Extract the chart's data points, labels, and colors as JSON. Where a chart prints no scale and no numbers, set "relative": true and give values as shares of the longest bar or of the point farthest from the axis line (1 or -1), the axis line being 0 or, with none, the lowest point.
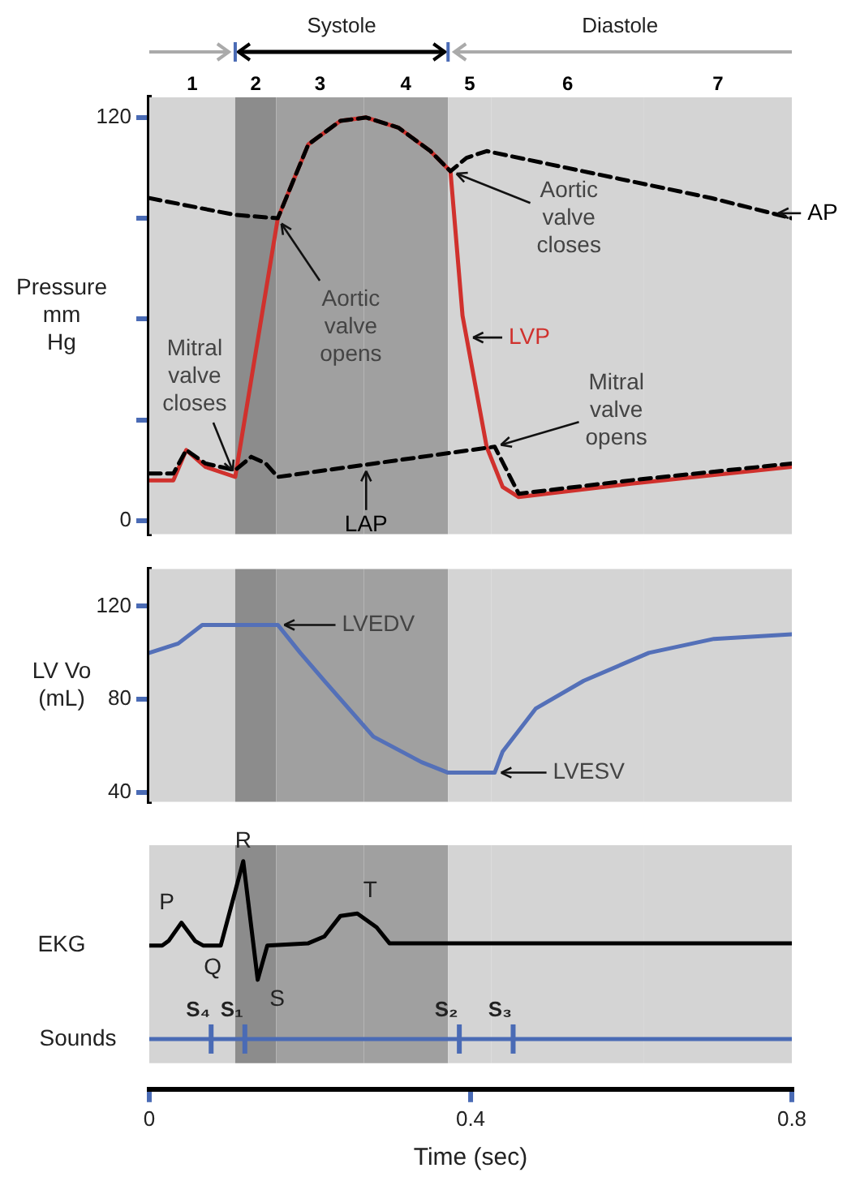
{
  "chart_data": [
    {
      "type": "line",
      "ylabel": "Pressure mm Hg",
      "xlim": [
        0,
        0.8
      ],
      "ylim": [
        -4,
        126
      ],
      "yticks": [
        0,
        {
          "value": 30,
          "label": null
        },
        {
          "value": 60,
          "label": null
        },
        {
          "value": 90,
          "label": null
        },
        120
      ],
      "tick_labels": "y",
      "series": [
        {
          "name": "AP",
          "color": "#000000",
          "line_style": "dashed",
          "x": [
            0,
            0.107,
            0.16,
            0.198,
            0.238,
            0.27,
            0.31,
            0.35,
            0.375,
            0.395,
            0.42,
            0.5,
            0.6,
            0.7,
            0.8
          ],
          "values": [
            96,
            91,
            90,
            112,
            119,
            120,
            117,
            110,
            104,
            108,
            110,
            106,
            101,
            96,
            90
          ]
        },
        {
          "name": "LAP",
          "color": "#000000",
          "line_style": "dashed",
          "x": [
            0,
            0.03,
            0.046,
            0.07,
            0.107,
            0.127,
            0.145,
            0.16,
            0.43,
            0.46,
            0.6,
            0.8
          ],
          "values": [
            14,
            14,
            21,
            17,
            15,
            19,
            17,
            13,
            22,
            8,
            12,
            17
          ]
        },
        {
          "name": "LVP",
          "color": "#d0312d",
          "x": [
            0,
            0.03,
            0.046,
            0.07,
            0.107,
            0.16,
            0.198,
            0.238,
            0.27,
            0.31,
            0.35,
            0.375,
            0.39,
            0.42,
            0.44,
            0.46,
            0.6,
            0.8
          ],
          "values": [
            12,
            12,
            21,
            16,
            13,
            90,
            112,
            119,
            120,
            117,
            110,
            104,
            61,
            22,
            10,
            7,
            11,
            16
          ]
        }
      ],
      "bands": [
        {
          "axis": "x",
          "from": 0,
          "to": 0.107,
          "label": "1",
          "color": "#d4d4d4"
        },
        {
          "axis": "x",
          "from": 0.107,
          "to": 0.158,
          "label": "2",
          "color": "#8c8c8c"
        },
        {
          "axis": "x",
          "from": 0.158,
          "to": 0.267,
          "label": "3",
          "color": "#a0a0a0"
        },
        {
          "axis": "x",
          "from": 0.267,
          "to": 0.372,
          "label": "4",
          "color": "#a0a0a0"
        },
        {
          "axis": "x",
          "from": 0.372,
          "to": 0.426,
          "label": "5",
          "color": "#d4d4d4"
        },
        {
          "axis": "x",
          "from": 0.426,
          "to": 0.616,
          "label": "6",
          "color": "#d4d4d4"
        },
        {
          "axis": "x",
          "from": 0.616,
          "to": 0.8,
          "label": "7",
          "color": "#d4d4d4"
        }
      ],
      "annotations": [
        "Systole",
        "Diastole",
        {
          "text": "Mitral valve closes",
          "x": 0.107,
          "y": 13
        },
        {
          "text": "Aortic valve opens",
          "x": 0.16,
          "y": 90
        },
        {
          "text": "Aortic valve closes",
          "x": 0.375,
          "y": 104
        },
        {
          "text": "Mitral valve opens",
          "x": 0.43,
          "y": 22
        }
      ]
    },
    {
      "type": "line",
      "ylabel": "LV Vo (mL)",
      "xlim": [
        0,
        0.8
      ],
      "ylim": [
        36,
        136
      ],
      "yticks": [
        40,
        80,
        120
      ],
      "tick_labels": "y",
      "series": [
        {
          "color": "#5470b8",
          "x": [
            0,
            0.036,
            0.066,
            0.16,
            0.188,
            0.218,
            0.279,
            0.339,
            0.372,
            0.43,
            0.44,
            0.481,
            0.541,
            0.622,
            0.703,
            0.8
          ],
          "values": [
            100,
            104,
            112,
            112,
            100,
            88,
            64,
            53,
            48.5,
            48.5,
            57.6,
            76,
            88,
            100,
            106,
            108
          ]
        }
      ],
      "bands": [
        {
          "axis": "x",
          "from": 0,
          "to": 0.107,
          "color": "#d4d4d4"
        },
        {
          "axis": "x",
          "from": 0.107,
          "to": 0.158,
          "color": "#8c8c8c"
        },
        {
          "axis": "x",
          "from": 0.158,
          "to": 0.267,
          "color": "#a0a0a0"
        },
        {
          "axis": "x",
          "from": 0.267,
          "to": 0.372,
          "color": "#a0a0a0"
        },
        {
          "axis": "x",
          "from": 0.372,
          "to": 0.426,
          "color": "#d4d4d4"
        },
        {
          "axis": "x",
          "from": 0.426,
          "to": 0.616,
          "color": "#d4d4d4"
        },
        {
          "axis": "x",
          "from": 0.616,
          "to": 0.8,
          "color": "#d4d4d4"
        }
      ],
      "annotations": [
        {
          "text": "LVEDV",
          "x": 0.16,
          "y": 112
        },
        {
          "text": "LVESV",
          "x": 0.43,
          "y": 48.5
        }
      ]
    },
    {
      "type": "line",
      "ylabel": "EKG",
      "xlabel": "Time (sec)",
      "relative": true,
      "xlim": [
        0,
        0.8
      ],
      "xticks": [
        0,
        0.4,
        0.8
      ],
      "tick_labels": "x",
      "series": [
        {
          "color": "#000000",
          "x": [
            0,
            0.016,
            0.024,
            0.04,
            0.057,
            0.067,
            0.089,
            0.117,
            0.135,
            0.147,
            0.198,
            0.218,
            0.238,
            0.259,
            0.283,
            0.299,
            0.8
          ],
          "values": [
            0.63,
            0.63,
            0.65,
            0.73,
            0.65,
            0.63,
            0.63,
            1,
            0.48,
            0.63,
            0.64,
            0.67,
            0.76,
            0.77,
            0.71,
            0.64,
            0.64
          ]
        },
        {
          "color": "#4a6bb5",
          "x": [
            0,
            0.8
          ],
          "values": [
            0.22,
            0.22
          ]
        }
      ],
      "bands": [
        {
          "axis": "x",
          "from": 0,
          "to": 0.107,
          "color": "#d4d4d4"
        },
        {
          "axis": "x",
          "from": 0.107,
          "to": 0.158,
          "color": "#8c8c8c"
        },
        {
          "axis": "x",
          "from": 0.158,
          "to": 0.267,
          "color": "#a0a0a0"
        },
        {
          "axis": "x",
          "from": 0.267,
          "to": 0.372,
          "color": "#a0a0a0"
        },
        {
          "axis": "x",
          "from": 0.372,
          "to": 0.426,
          "color": "#d4d4d4"
        },
        {
          "axis": "x",
          "from": 0.426,
          "to": 0.616,
          "color": "#d4d4d4"
        },
        {
          "axis": "x",
          "from": 0.616,
          "to": 0.8,
          "color": "#d4d4d4"
        }
      ],
      "ref_lines": [
        {
          "axis": "x",
          "value": 0.077,
          "label": "S₄",
          "color": "#4a6bb5"
        },
        {
          "axis": "x",
          "value": 0.119,
          "label": "S₁",
          "color": "#4a6bb5"
        },
        {
          "axis": "x",
          "value": 0.386,
          "label": "S₂",
          "color": "#4a6bb5"
        },
        {
          "axis": "x",
          "value": 0.453,
          "label": "S₃",
          "color": "#4a6bb5"
        }
      ],
      "annotations": [
        "Sounds",
        {
          "text": "P",
          "x": 0.04,
          "y": 0.73
        },
        {
          "text": "Q",
          "x": 0.089,
          "y": 0.63
        },
        {
          "text": "R",
          "x": 0.117,
          "y": 1
        },
        {
          "text": "S",
          "x": 0.135,
          "y": 0.48
        },
        {
          "text": "T",
          "x": 0.259,
          "y": 0.77
        }
      ]
    }
  ]
}
